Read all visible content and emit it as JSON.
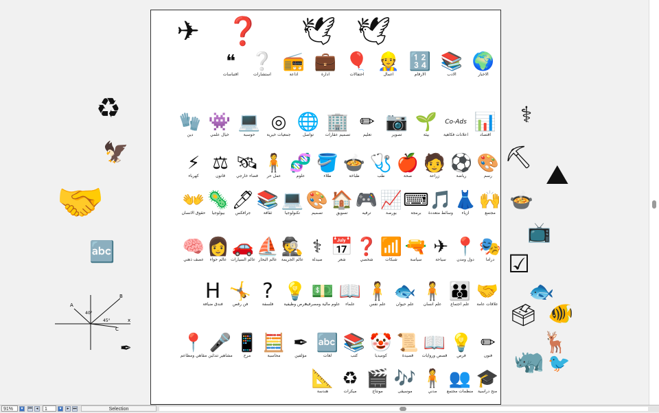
{
  "document": {
    "rows": [
      [
        {
          "name": "paper-plane-icon",
          "g": "✈",
          "label": ""
        },
        {
          "name": "question-box-icon",
          "g": "❓",
          "label": ""
        },
        {
          "name": "dove-icon",
          "g": "🕊",
          "label": ""
        },
        {
          "name": "dove-icon",
          "g": "🕊",
          "label": ""
        }
      ],
      [
        {
          "name": "news-globe-icon",
          "g": "🌍",
          "label": "الاخبار"
        },
        {
          "name": "books-icon",
          "g": "📚",
          "label": "الادب"
        },
        {
          "name": "numbers-icon",
          "g": "🔢",
          "label": "الارقام"
        },
        {
          "name": "worker-icon",
          "g": "👷",
          "label": "اعمال"
        },
        {
          "name": "balloons-icon",
          "g": "🎈",
          "label": "احتفالات"
        },
        {
          "name": "briefcase-icon",
          "g": "💼",
          "label": "ادارة"
        },
        {
          "name": "radio-icon",
          "g": "📻",
          "label": "اذاعة"
        },
        {
          "name": "consult-head-icon",
          "g": "❔",
          "label": "استشارات"
        },
        {
          "name": "quotes-icon",
          "g": "❝",
          "label": "اقتباسات"
        }
      ],
      [
        {
          "name": "bar-chart-icon",
          "g": "📊",
          "label": "اقتصاد"
        },
        {
          "name": "co-ads-icon",
          "g": "Co-Ads",
          "label": "اعلانات فكاهية"
        },
        {
          "name": "plant-icon",
          "g": "🌱",
          "label": "بيئة"
        },
        {
          "name": "camera-icon",
          "g": "📷",
          "label": "تصوير"
        },
        {
          "name": "pencil-icon",
          "g": "✏",
          "label": "تعليم"
        },
        {
          "name": "buildings-icon",
          "g": "🏢",
          "label": "تصميم عقارات"
        },
        {
          "name": "globe-hand-icon",
          "g": "🌐",
          "label": "تواصل"
        },
        {
          "name": "aperture-icon",
          "g": "◎",
          "label": "جمعيات خيرية"
        },
        {
          "name": "laptop-icon",
          "g": "💻",
          "label": "حوسبة"
        },
        {
          "name": "sci-fi-icon",
          "g": "👾",
          "label": "خيال علمي"
        },
        {
          "name": "glove-icon",
          "g": "🧤",
          "label": "دين"
        }
      ],
      [
        {
          "name": "palette-icon",
          "g": "🎨",
          "label": "رسم"
        },
        {
          "name": "soccer-ball-icon",
          "g": "⚽",
          "label": "رياضة"
        },
        {
          "name": "farmer-icon",
          "g": "🧑",
          "label": "زراعة"
        },
        {
          "name": "apple-icon",
          "g": "🍎",
          "label": "صحة"
        },
        {
          "name": "stethoscope-icon",
          "g": "🩺",
          "label": "طب"
        },
        {
          "name": "chef-icon",
          "g": "🍲",
          "label": "طباخة"
        },
        {
          "name": "paint-bucket-icon",
          "g": "🪣",
          "label": "طلاء"
        },
        {
          "name": "dna-icon",
          "g": "🧬",
          "label": "علوم"
        },
        {
          "name": "person-standing-icon",
          "g": "🧍",
          "label": "عمل حر"
        },
        {
          "name": "satellite-icon",
          "g": "🛰",
          "label": "فضاء خارجي"
        },
        {
          "name": "scales-icon",
          "g": "⚖",
          "label": "قانون"
        },
        {
          "name": "lightning-icon",
          "g": "⚡",
          "label": "كهرباء"
        }
      ],
      [
        {
          "name": "crowd-icon",
          "g": "🙌",
          "label": "مجتمع"
        },
        {
          "name": "dress-icon",
          "g": "👗",
          "label": "ازياء"
        },
        {
          "name": "music-notes-icon",
          "g": "🎵",
          "label": "وسائط متعددة"
        },
        {
          "name": "binary-icon",
          "g": "⌨",
          "label": "برمجة"
        },
        {
          "name": "stock-chart-icon",
          "g": "📈",
          "label": "بورصة"
        },
        {
          "name": "gamepad-icon",
          "g": "🎮",
          "label": "ترفيه"
        },
        {
          "name": "house-arrow-icon",
          "g": "🏠",
          "label": "تسويق"
        },
        {
          "name": "palette-icon",
          "g": "🎨",
          "label": "تصميم"
        },
        {
          "name": "laptop-icon",
          "g": "💻",
          "label": "تكنولوجيا"
        },
        {
          "name": "books-icon",
          "g": "📚",
          "label": "ثقافة"
        },
        {
          "name": "pens-icon",
          "g": "🖊",
          "label": "جرافكس"
        },
        {
          "name": "bio-icon",
          "g": "🦠",
          "label": "بيولوجيا"
        },
        {
          "name": "hands-person-icon",
          "g": "👐",
          "label": "حقوق الانسان"
        }
      ],
      [
        {
          "name": "drama-masks-icon",
          "g": "🎭",
          "label": "دراما"
        },
        {
          "name": "location-pin-icon",
          "g": "📍",
          "label": "دول ومدن"
        },
        {
          "name": "airplane-icon",
          "g": "✈",
          "label": "سياحة"
        },
        {
          "name": "rifle-icon",
          "g": "🔫",
          "label": "سياسة"
        },
        {
          "name": "wifi-icon",
          "g": "📶",
          "label": "شبكات"
        },
        {
          "name": "head-question-icon",
          "g": "❓",
          "label": "شخصي"
        },
        {
          "name": "calendar-icon",
          "g": "📅",
          "label": "شعر"
        },
        {
          "name": "pharmacy-icon",
          "g": "⚕",
          "label": "صيدلة"
        },
        {
          "name": "spy-icon",
          "g": "🕵",
          "label": "عالم الجريمة"
        },
        {
          "name": "sailboat-icon",
          "g": "⛵",
          "label": "عالم البحار"
        },
        {
          "name": "car-icon",
          "g": "🚗",
          "label": "عالم السيارات"
        },
        {
          "name": "woman-head-icon",
          "g": "👩",
          "label": "عالم حواء"
        },
        {
          "name": "brain-storm-icon",
          "g": "🧠",
          "label": "عصف ذهني"
        }
      ],
      [
        {
          "name": "handshake-icon",
          "g": "🤝",
          "label": "علاقات عامة"
        },
        {
          "name": "family-icon",
          "g": "👪",
          "label": "علم اجتماع"
        },
        {
          "name": "person-icon",
          "g": "🧍",
          "label": "علم انسان"
        },
        {
          "name": "fish-icon",
          "g": "🐟",
          "label": "علم حيوان"
        },
        {
          "name": "man-standing-icon",
          "g": "🧍",
          "label": "علم نفس"
        },
        {
          "name": "reader-icon",
          "g": "📖",
          "label": "علماء"
        },
        {
          "name": "money-icon",
          "g": "💵",
          "label": "علوم مالية ومصرفية"
        },
        {
          "name": "grad-bulb-icon",
          "g": "💡",
          "label": "فرص وظيفية"
        },
        {
          "name": "question-mark-icon",
          "g": "?",
          "label": "فلسفة"
        },
        {
          "name": "breakdancer-icon",
          "g": "🤸",
          "label": "فن رقص"
        },
        {
          "name": "letter-h-icon",
          "g": "H",
          "label": "فندق ضيافة"
        }
      ],
      [
        {
          "name": "art-tools-icon",
          "g": "✏",
          "label": "فنون"
        },
        {
          "name": "lightbulb-icon",
          "g": "💡",
          "label": "فرص"
        },
        {
          "name": "open-book-icon",
          "g": "📖",
          "label": "قصص وروايات"
        },
        {
          "name": "poem-icon",
          "g": "📜",
          "label": "قصيدة"
        },
        {
          "name": "clown-icon",
          "g": "🤡",
          "label": "كوميديا"
        },
        {
          "name": "books-icon",
          "g": "📚",
          "label": "كتب"
        },
        {
          "name": "abc-blocks-icon",
          "g": "🔤",
          "label": "لغات"
        },
        {
          "name": "author-icon",
          "g": "✒",
          "label": "مؤلفين"
        },
        {
          "name": "calculator-icon",
          "g": "🧮",
          "label": "محاسبة"
        },
        {
          "name": "phone-icon",
          "g": "📱",
          "label": "مرح"
        },
        {
          "name": "microphone-icon",
          "g": "🎤",
          "label": "مشاهير تنذلين"
        },
        {
          "name": "pin-icon",
          "g": "📍",
          "label": "مقاهي ومطاعم"
        }
      ],
      [
        {
          "name": "grad-cap-icon",
          "g": "🎓",
          "label": "منح دراسية"
        },
        {
          "name": "crowd-icon",
          "g": "👥",
          "label": "منظمات مجتمع"
        },
        {
          "name": "person-icon",
          "g": "🧍",
          "label": "مدني"
        },
        {
          "name": "music-icon",
          "g": "🎶",
          "label": "موسيقى"
        },
        {
          "name": "clapper-icon",
          "g": "🎬",
          "label": "مونتاج"
        },
        {
          "name": "recycle-icon",
          "g": "♻",
          "label": "ميكرات"
        },
        {
          "name": "compass-icon",
          "g": "📐",
          "label": "هندسة"
        }
      ]
    ]
  },
  "side": {
    "left": [
      {
        "name": "recycle-circle-icon",
        "g": "♻"
      },
      {
        "name": "eagle-icon",
        "g": "🦅"
      },
      {
        "name": "handshake-icon",
        "g": "🤝"
      },
      {
        "name": "abc-blocks-icon",
        "g": "🔤"
      },
      {
        "name": "vector-diagram-icon",
        "g": "📐"
      },
      {
        "name": "author-icon",
        "g": "✒"
      }
    ],
    "right": [
      {
        "name": "pharmacy-icon",
        "g": "⚕"
      },
      {
        "name": "tools-icon",
        "g": "⛏"
      },
      {
        "name": "mountain-icon",
        "g": "⛰"
      },
      {
        "name": "cooking-pot-icon",
        "g": "🍲"
      },
      {
        "name": "tv-icon",
        "g": "📺"
      },
      {
        "name": "checkbox-icon",
        "g": "☑"
      },
      {
        "name": "fish-icon",
        "g": "🐟"
      },
      {
        "name": "voter-icon",
        "g": "🗳"
      },
      {
        "name": "fish-icon",
        "g": "🐠"
      },
      {
        "name": "deer-icon",
        "g": "🦌"
      },
      {
        "name": "rhino-icon",
        "g": "🦏"
      },
      {
        "name": "bird-icon",
        "g": "🐦"
      }
    ],
    "vector_labels": {
      "a": "A",
      "b": "B",
      "c": "C",
      "x": "x",
      "angle1": "40°",
      "angle2": "45°"
    }
  },
  "statusbar": {
    "zoom": "91%",
    "page": "1",
    "mode": "Selection"
  }
}
